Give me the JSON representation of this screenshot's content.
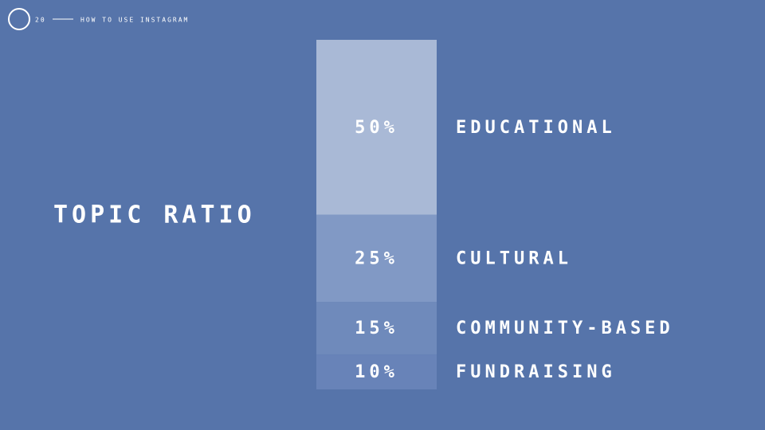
{
  "header": {
    "page_number": "20",
    "section": "HOW TO USE INSTAGRAM"
  },
  "chart_data": {
    "type": "stacked-column",
    "title": "TOPIC RATIO",
    "categories": [
      "EDUCATIONAL",
      "CULTURAL",
      "COMMUNITY-BASED",
      "FUNDRAISING"
    ],
    "values": [
      50,
      25,
      15,
      10
    ],
    "value_labels": [
      "50%",
      "25%",
      "15%",
      "10%"
    ],
    "colors": [
      "#a9b9d6",
      "#8199c5",
      "#6f8abb",
      "#6883b8"
    ],
    "ylim": [
      0,
      100
    ]
  }
}
